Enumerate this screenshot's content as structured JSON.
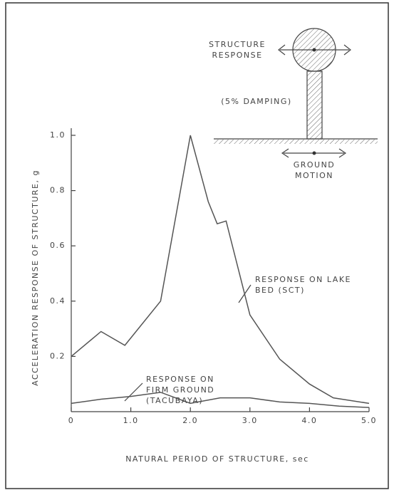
{
  "chart_data": {
    "type": "line",
    "xlabel": "NATURAL PERIOD OF STRUCTURE, sec",
    "ylabel": "ACCELERATION RESPONSE OF STRUCTURE, g",
    "xlim": [
      0,
      5
    ],
    "ylim": [
      0,
      1
    ],
    "xticks": [
      0,
      {
        "value": 1,
        "label": "1.0"
      },
      {
        "value": 2,
        "label": "2.0"
      },
      {
        "value": 3,
        "label": "3.0"
      },
      {
        "value": 4,
        "label": "4.0"
      },
      {
        "value": 5,
        "label": "5.0"
      }
    ],
    "yticks": [
      0.2,
      0.4,
      0.6,
      0.8,
      {
        "value": 1,
        "label": "1.0"
      }
    ],
    "series": [
      {
        "color": "#555555",
        "x": [
          0,
          0.5,
          0.9,
          1.5,
          2.0,
          2.3,
          2.45,
          2.6,
          3.0,
          3.5,
          4.0,
          4.4,
          5.0
        ],
        "values": [
          0.2,
          0.29,
          0.24,
          0.4,
          1.0,
          0.76,
          0.68,
          0.69,
          0.35,
          0.19,
          0.1,
          0.05,
          0.03
        ]
      },
      {
        "color": "#555555",
        "x": [
          0,
          0.5,
          1.0,
          1.5,
          2.0,
          2.5,
          3.0,
          3.5,
          4.0,
          4.5,
          5.0
        ],
        "values": [
          0.03,
          0.045,
          0.055,
          0.07,
          0.03,
          0.05,
          0.05,
          0.035,
          0.03,
          0.02,
          0.015
        ]
      }
    ],
    "annotations": [
      {
        "lines": [
          "RESPONSE ON LAKE",
          "BED (SCT)"
        ]
      },
      {
        "lines": [
          "RESPONSE ON",
          "FIRM GROUND",
          "(TACUBAYA)"
        ]
      }
    ],
    "diagram": {
      "structure": [
        "STRUCTURE",
        "RESPONSE"
      ],
      "damping": "(5% DAMPING)",
      "ground": [
        "GROUND",
        "MOTION"
      ]
    }
  }
}
